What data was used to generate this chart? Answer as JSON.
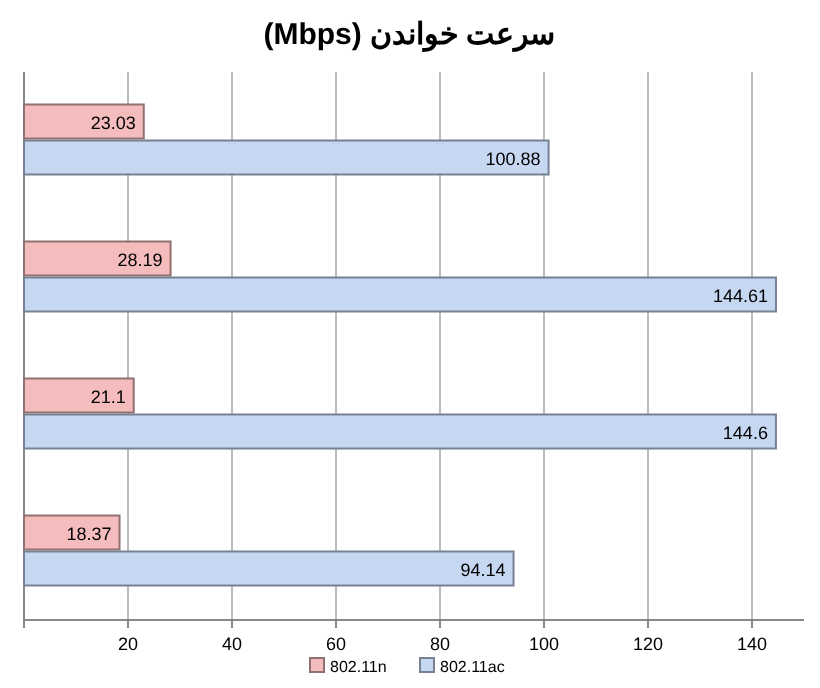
{
  "chart_data": {
    "type": "bar",
    "orientation": "horizontal",
    "title": "سرعت خواندن (Mbps)",
    "categories": [
      null,
      null,
      null,
      null
    ],
    "series": [
      {
        "name": "802.11n",
        "color": "#f4bcbc",
        "values": [
          23.03,
          28.19,
          21.1,
          18.37
        ]
      },
      {
        "name": "802.11ac",
        "color": "#c6d7f2",
        "values": [
          100.88,
          144.61,
          144.6,
          94.14
        ]
      }
    ],
    "xlim": [
      0,
      150
    ],
    "xticks": [
      {
        "value": 0,
        "label": null
      },
      20,
      40,
      60,
      80,
      100,
      120,
      140
    ],
    "grid": "x",
    "data_labels": true,
    "legend": "bottom"
  }
}
